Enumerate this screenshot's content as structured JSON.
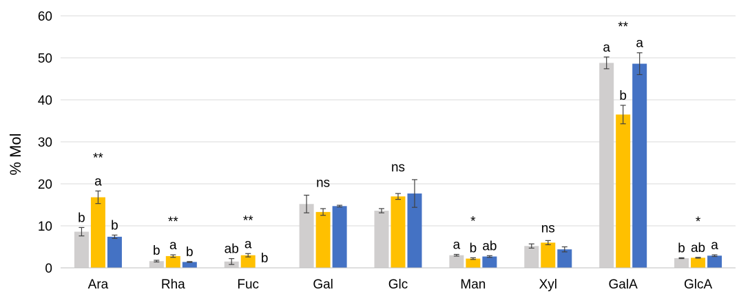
{
  "chart_data": {
    "type": "bar",
    "title": "",
    "xlabel": "",
    "ylabel": "% Mol",
    "ylim": [
      0,
      60
    ],
    "yticks": [
      0,
      10,
      20,
      30,
      40,
      50,
      60
    ],
    "grid": true,
    "legend": "none",
    "categories": [
      "Ara",
      "Rha",
      "Fuc",
      "Gal",
      "Glc",
      "Man",
      "Xyl",
      "GalA",
      "GlcA"
    ],
    "series": [
      {
        "color": "#d0cece",
        "values": [
          8.6,
          1.6,
          1.5,
          15.2,
          13.6,
          3.0,
          5.2,
          48.8,
          2.3
        ],
        "errors": [
          1.0,
          0.2,
          0.7,
          2.1,
          0.5,
          0.2,
          0.5,
          1.4,
          0.1
        ],
        "labels": [
          "b",
          "b",
          "ab",
          "",
          "",
          "a",
          "",
          "a",
          "b"
        ]
      },
      {
        "color": "#ffc000",
        "values": [
          16.8,
          2.8,
          3.0,
          13.3,
          17.0,
          2.2,
          6.0,
          36.5,
          2.4
        ],
        "errors": [
          1.5,
          0.3,
          0.4,
          0.8,
          0.7,
          0.2,
          0.5,
          2.2,
          0.1
        ],
        "labels": [
          "a",
          "a",
          "a",
          "",
          "",
          "b",
          "",
          "b",
          "ab"
        ]
      },
      {
        "color": "#4472c4",
        "values": [
          7.4,
          1.4,
          0.0,
          14.7,
          17.7,
          2.7,
          4.4,
          48.6,
          2.9
        ],
        "errors": [
          0.4,
          0.1,
          0.0,
          0.2,
          3.3,
          0.2,
          0.6,
          2.6,
          0.2
        ],
        "labels": [
          "b",
          "b",
          "b",
          "",
          "",
          "ab",
          "",
          "a",
          "a"
        ]
      }
    ],
    "significance": [
      "**",
      "**",
      "**",
      "ns",
      "ns",
      "*",
      "ns",
      "**",
      "*"
    ]
  }
}
